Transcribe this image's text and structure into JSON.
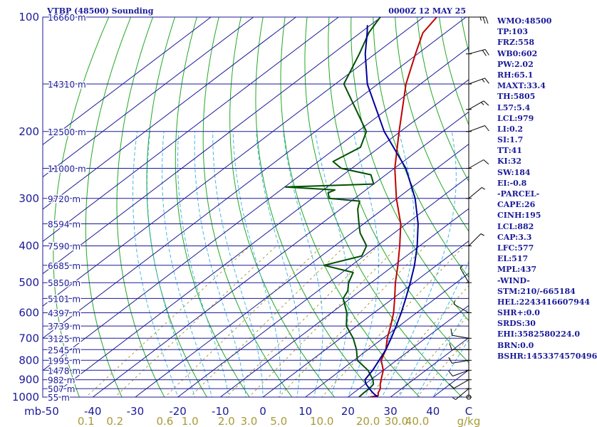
{
  "header": {
    "station": "VTBP (48500) Sounding",
    "time": "0000Z 12 MAY 25"
  },
  "chart_data": {
    "type": "skew-t log-p",
    "pressure_axis": {
      "unit_label": "mb",
      "ticks": [
        100,
        200,
        300,
        400,
        500,
        600,
        700,
        800,
        900,
        1000
      ],
      "range": [
        100,
        1000
      ]
    },
    "height_labels": [
      {
        "p": 100,
        "label": "16660 m"
      },
      {
        "p": 150,
        "label": "14310 m"
      },
      {
        "p": 200,
        "label": "12500 m"
      },
      {
        "p": 250,
        "label": "11000 m"
      },
      {
        "p": 300,
        "label": "9720 m"
      },
      {
        "p": 350,
        "label": "8594 m"
      },
      {
        "p": 400,
        "label": "7590 m"
      },
      {
        "p": 450,
        "label": "6685 m"
      },
      {
        "p": 500,
        "label": "5850 m"
      },
      {
        "p": 550,
        "label": "5101 m"
      },
      {
        "p": 600,
        "label": "4397 m"
      },
      {
        "p": 650,
        "label": "3739 m"
      },
      {
        "p": 700,
        "label": "3125 m"
      },
      {
        "p": 750,
        "label": "2545 m"
      },
      {
        "p": 800,
        "label": "1995 m"
      },
      {
        "p": 850,
        "label": "1478 m"
      },
      {
        "p": 900,
        "label": "982 m"
      },
      {
        "p": 950,
        "label": "507 m"
      },
      {
        "p": 1000,
        "label": "55 m"
      }
    ],
    "temperature_axis": {
      "unit": "C",
      "tick_labels": [
        "-50",
        "-40",
        "-30",
        "-20",
        "-10",
        "0",
        "10",
        "20",
        "30",
        "40"
      ],
      "ticks": [
        -50,
        -40,
        -30,
        -20,
        -10,
        0,
        10,
        20,
        30,
        40
      ],
      "range": [
        -50,
        50
      ]
    },
    "mixing_ratio_axis": {
      "unit": "g/kg",
      "tick_labels": [
        "0.1",
        "0.2",
        "0.6",
        "1.0",
        "2.0",
        "3.0",
        "5.0",
        "10.0",
        "20.0",
        "30.0",
        "40.0"
      ],
      "ticks": [
        0.1,
        0.2,
        0.6,
        1.0,
        2.0,
        3.0,
        5.0,
        10.0,
        20.0,
        30.0,
        40.0
      ]
    },
    "series": [
      {
        "key": "temperature",
        "color": "#c00000",
        "points": [
          [
            1006,
            25.4
          ],
          [
            1000,
            25.2
          ],
          [
            990,
            26.6
          ],
          [
            975,
            25.8
          ],
          [
            950,
            25.0
          ],
          [
            925,
            23.6
          ],
          [
            900,
            22.4
          ],
          [
            850,
            20.0
          ],
          [
            800,
            16.4
          ],
          [
            750,
            14.2
          ],
          [
            700,
            11.0
          ],
          [
            650,
            8.0
          ],
          [
            600,
            4.6
          ],
          [
            550,
            0.4
          ],
          [
            500,
            -4.3
          ],
          [
            450,
            -9.1
          ],
          [
            400,
            -14.7
          ],
          [
            350,
            -21.3
          ],
          [
            300,
            -30.2
          ],
          [
            250,
            -39.9
          ],
          [
            200,
            -50.3
          ],
          [
            150,
            -63.4
          ],
          [
            125,
            -70.5
          ],
          [
            110,
            -75.3
          ],
          [
            100,
            -76.9
          ]
        ]
      },
      {
        "key": "dewpoint",
        "color": "#005000",
        "points": [
          [
            1006,
            23.4
          ],
          [
            1000,
            22.6
          ],
          [
            975,
            22.4
          ],
          [
            950,
            22.4
          ],
          [
            925,
            22.0
          ],
          [
            900,
            20.5
          ],
          [
            850,
            16.4
          ],
          [
            800,
            10.8
          ],
          [
            750,
            7.3
          ],
          [
            700,
            3.0
          ],
          [
            650,
            -2.4
          ],
          [
            600,
            -6.4
          ],
          [
            550,
            -11.7
          ],
          [
            525,
            -13.0
          ],
          [
            500,
            -15.3
          ],
          [
            470,
            -17.4
          ],
          [
            450,
            -26.5
          ],
          [
            425,
            -20.5
          ],
          [
            400,
            -22.5
          ],
          [
            370,
            -28.0
          ],
          [
            350,
            -31.1
          ],
          [
            320,
            -36.0
          ],
          [
            305,
            -38.0
          ],
          [
            300,
            -46.0
          ],
          [
            290,
            -48.0
          ],
          [
            285,
            -47.3
          ],
          [
            280,
            -59.8
          ],
          [
            275,
            -40.0
          ],
          [
            260,
            -43.5
          ],
          [
            250,
            -52.5
          ],
          [
            240,
            -56.5
          ],
          [
            220,
            -54.5
          ],
          [
            200,
            -58.0
          ],
          [
            150,
            -78.0
          ],
          [
            125,
            -83.7
          ],
          [
            110,
            -88.0
          ],
          [
            100,
            -90.2
          ]
        ]
      },
      {
        "key": "parcel",
        "color": "#000099",
        "points": [
          [
            1000,
            27.0
          ],
          [
            975,
            24.6
          ],
          [
            950,
            22.4
          ],
          [
            925,
            20.3
          ],
          [
            900,
            18.6
          ],
          [
            850,
            17.5
          ],
          [
            800,
            15.9
          ],
          [
            750,
            14.2
          ],
          [
            700,
            11.9
          ],
          [
            650,
            9.3
          ],
          [
            600,
            6.4
          ],
          [
            550,
            3.0
          ],
          [
            500,
            -0.8
          ],
          [
            450,
            -5.2
          ],
          [
            400,
            -10.6
          ],
          [
            350,
            -17.2
          ],
          [
            300,
            -25.8
          ],
          [
            250,
            -37.3
          ],
          [
            200,
            -53.8
          ],
          [
            150,
            -72.5
          ],
          [
            125,
            -82.3
          ],
          [
            110,
            -88.4
          ],
          [
            105,
            -90.7
          ]
        ]
      }
    ],
    "winds": [
      {
        "p": 100,
        "dir": 90,
        "spd": 25
      },
      {
        "p": 125,
        "dir": 75,
        "spd": 20
      },
      {
        "p": 150,
        "dir": 70,
        "spd": 15
      },
      {
        "p": 175,
        "dir": 60,
        "spd": 15
      },
      {
        "p": 200,
        "dir": 70,
        "spd": 10
      },
      {
        "p": 250,
        "dir": 60,
        "spd": 10
      },
      {
        "p": 300,
        "dir": 50,
        "spd": 5
      },
      {
        "p": 400,
        "dir": 45,
        "spd": 5
      },
      {
        "p": 500,
        "dir": 330,
        "spd": 5
      },
      {
        "p": 600,
        "dir": 300,
        "spd": 5
      },
      {
        "p": 700,
        "dir": 280,
        "spd": 10
      },
      {
        "p": 750,
        "dir": 270,
        "spd": 10
      },
      {
        "p": 800,
        "dir": 260,
        "spd": 10
      },
      {
        "p": 850,
        "dir": 250,
        "spd": 10
      },
      {
        "p": 900,
        "dir": 240,
        "spd": 10
      },
      {
        "p": 950,
        "dir": 230,
        "spd": 5
      },
      {
        "p": 1000,
        "dir": 200,
        "spd": 0
      }
    ]
  },
  "indices": [
    "WMO:48500",
    "TP:103",
    "FRZ:558",
    "WB0:602",
    "PW:2.02",
    "RH:65.1",
    "MAXT:33.4",
    "TH:5805",
    "L57:5.4",
    "LCL:979",
    "LI:0.2",
    "SI:1.7",
    "TT:41",
    "KI:32",
    "SW:184",
    "EI:-0.8",
    "-PARCEL-",
    "CAPE:26",
    "CINH:195",
    "LCL:882",
    "CAP:3.3",
    "LFC:577",
    "EL:517",
    "MPL:437",
    "-WIND-",
    "STM:210/-665184",
    "HEL:2243416607944",
    "SHR+:0.0",
    "SRDS:30",
    "EHI:3582580224.0",
    "BRN:0.0",
    "BSHR:1453374570496"
  ],
  "colors": {
    "frame": "#1a1a99",
    "isobar": "#1a1a99",
    "isotherm": "#1a1a99",
    "dry_adiabat": "#22a822",
    "moist_adiabat": "#48b8e8",
    "mixing_ratio": "#a89b37",
    "temperature": "#c00000",
    "dewpoint": "#005000",
    "parcel": "#000099",
    "wind": "#000000"
  }
}
